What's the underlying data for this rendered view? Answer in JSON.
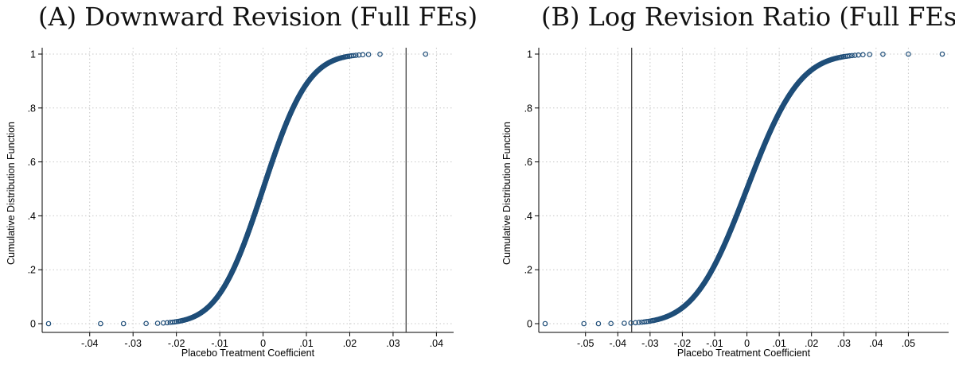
{
  "chart_data": [
    {
      "type": "scatter",
      "title": "(A) Downward Revision (Full FEs)",
      "xlabel": "Placebo Treatment Coefficient",
      "ylabel": "Cumulative Distribution Function",
      "xlim": [
        -0.0495,
        0.0425
      ],
      "ylim": [
        0,
        1
      ],
      "x_ticks": [
        -0.04,
        -0.03,
        -0.02,
        -0.01,
        0,
        0.01,
        0.02,
        0.03,
        0.04
      ],
      "x_tick_labels": [
        "-.04",
        "-.03",
        "-.02",
        "-.01",
        "0",
        ".01",
        ".02",
        ".03",
        ".04"
      ],
      "y_ticks": [
        0,
        0.2,
        0.4,
        0.6,
        0.8,
        1
      ],
      "y_tick_labels": [
        "0",
        ".2",
        ".4",
        ".6",
        ".8",
        "1"
      ],
      "grid": true,
      "vertical_line_x": 0.033,
      "cdf_shape": {
        "median": 0,
        "sd": 0.0082,
        "n": 1000
      },
      "outliers": [
        {
          "x": -0.0495,
          "y": 0
        },
        {
          "x": -0.0375,
          "y": 0
        },
        {
          "x": -0.0322,
          "y": 0
        },
        {
          "x": 0.0375,
          "y": 1
        }
      ],
      "marker_color": "#1f4e79"
    },
    {
      "type": "scatter",
      "title": "(B) Log Revision Ratio (Full FEs)",
      "xlabel": "Placebo Treatment Coefficient",
      "ylabel": "Cumulative Distribution Function",
      "xlim": [
        -0.0625,
        0.0605
      ],
      "ylim": [
        0,
        1
      ],
      "x_ticks": [
        -0.05,
        -0.04,
        -0.03,
        -0.02,
        -0.01,
        0,
        0.01,
        0.02,
        0.03,
        0.04,
        0.05
      ],
      "x_tick_labels": [
        "-.05",
        "-.04",
        "-.03",
        "-.02",
        "-.01",
        "0",
        ".01",
        ".02",
        ".03",
        ".04",
        ".05"
      ],
      "y_ticks": [
        0,
        0.2,
        0.4,
        0.6,
        0.8,
        1
      ],
      "y_tick_labels": [
        "0",
        ".2",
        ".4",
        ".6",
        ".8",
        "1"
      ],
      "grid": true,
      "vertical_line_x": -0.0357,
      "cdf_shape": {
        "median": 0,
        "sd": 0.0128,
        "n": 1000
      },
      "outliers": [
        {
          "x": -0.0625,
          "y": 0
        },
        {
          "x": -0.0505,
          "y": 0
        },
        {
          "x": -0.046,
          "y": 0
        },
        {
          "x": 0.05,
          "y": 1
        },
        {
          "x": 0.0605,
          "y": 1
        }
      ],
      "marker_color": "#1f4e79"
    }
  ]
}
